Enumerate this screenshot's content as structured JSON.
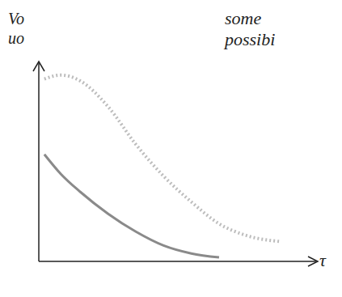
{
  "chart_data": {
    "type": "line",
    "y_label": [
      "Vo",
      "uo"
    ],
    "x_label": "τ",
    "annotations": [
      "some",
      "possibi"
    ],
    "x": [
      2,
      8,
      15,
      25,
      35,
      45,
      55,
      65,
      75,
      87
    ],
    "series": [
      {
        "color": "#bdbdbd",
        "line_style": "dotted",
        "values": [
          92,
          94,
          91,
          78,
          59,
          43,
          30,
          19,
          13,
          10
        ]
      },
      {
        "color": "#8a8a8a",
        "line_style": "solid",
        "values": [
          54,
          44,
          35,
          24,
          15,
          8,
          4,
          2,
          null,
          null
        ]
      }
    ],
    "xlim": [
      0,
      100
    ],
    "ylim": [
      0,
      100
    ],
    "tick_labels": false,
    "grid": false
  }
}
